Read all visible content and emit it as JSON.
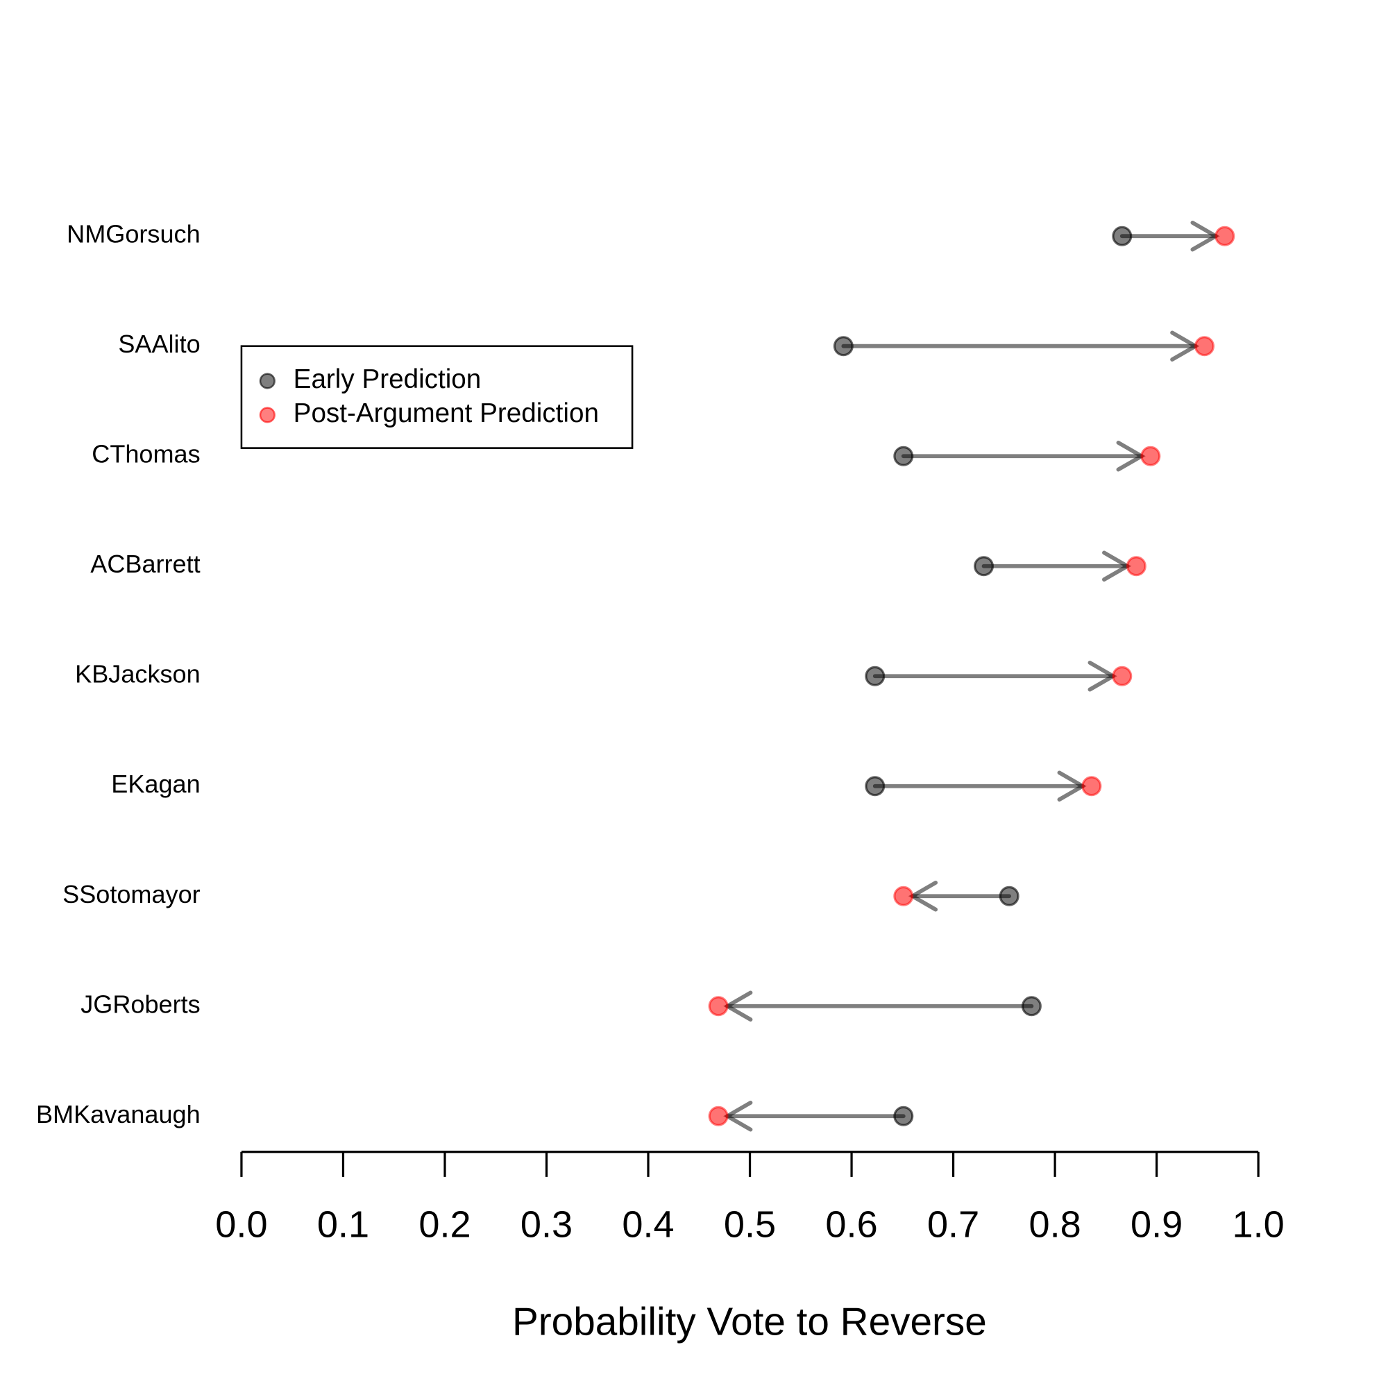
{
  "chart_data": {
    "type": "arrow-dot",
    "categories": [
      "NMGorsuch",
      "SAAlito",
      "CThomas",
      "ACBarrett",
      "KBJackson",
      "EKagan",
      "SSotomayor",
      "JGRoberts",
      "BMKavanaugh"
    ],
    "series": [
      {
        "name": "Early Prediction",
        "color": "#000000",
        "values": [
          0.866,
          0.592,
          0.651,
          0.73,
          0.623,
          0.623,
          0.755,
          0.777,
          0.651
        ]
      },
      {
        "name": "Post-Argument Prediction",
        "color": "#ff0000",
        "values": [
          0.967,
          0.947,
          0.894,
          0.88,
          0.866,
          0.836,
          0.651,
          0.469,
          0.469
        ]
      }
    ],
    "arrow_color": "#000000",
    "xlabel": "Probability Vote to Reverse",
    "xlim": [
      0,
      1
    ],
    "xticks": [
      {
        "value": 0,
        "label": "0.0"
      },
      0.1,
      0.2,
      0.3,
      0.4,
      0.5,
      0.6,
      0.7,
      0.8,
      0.9,
      {
        "value": 1,
        "label": "1.0"
      }
    ],
    "legend": "upper left"
  }
}
